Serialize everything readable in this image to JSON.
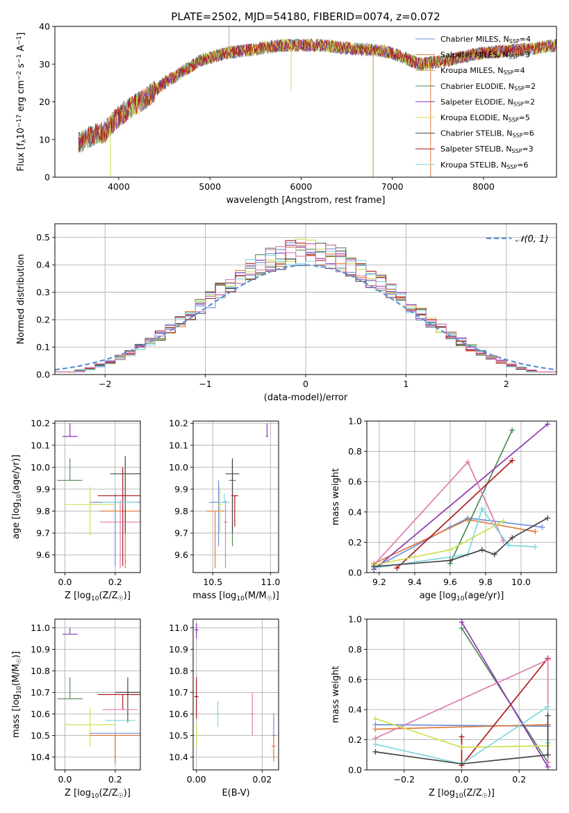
{
  "figure": {
    "title": "PLATE=2502, MJD=54180, FIBERID=0074, z=0.072"
  },
  "colors": [
    "#6f8fd9",
    "#e07b39",
    "#c8932c",
    "#4f8a57",
    "#8e35b5",
    "#cbe04d",
    "#444444",
    "#b01818",
    "#7fd6e0",
    "#e07ab0"
  ],
  "chart_data": [
    {
      "id": "spectrum",
      "type": "line",
      "xlabel": "wavelength [Angstrom, rest frame]",
      "ylabel": "Flux [f_λ10^-17 erg cm^-2 s^-1 A^-1]",
      "xlim": [
        3300,
        8800
      ],
      "ylim": [
        0,
        40
      ],
      "xticks": [
        4000,
        5000,
        6000,
        7000,
        8000
      ],
      "yticks": [
        0,
        10,
        20,
        30,
        40
      ],
      "grid": false,
      "legend": "top-right",
      "continuum": [
        [
          3560,
          9
        ],
        [
          3700,
          11
        ],
        [
          3850,
          12
        ],
        [
          3950,
          15
        ],
        [
          4100,
          18
        ],
        [
          4300,
          21
        ],
        [
          4500,
          25
        ],
        [
          4700,
          28
        ],
        [
          4900,
          31
        ],
        [
          5200,
          33
        ],
        [
          5500,
          34
        ],
        [
          5800,
          35
        ],
        [
          6200,
          35
        ],
        [
          6600,
          34
        ],
        [
          6900,
          33.5
        ],
        [
          7100,
          32
        ],
        [
          7300,
          30
        ],
        [
          7600,
          31
        ],
        [
          8000,
          33
        ],
        [
          8500,
          34
        ],
        [
          8800,
          35
        ]
      ],
      "spikes": [
        [
          5210,
          40
        ],
        [
          6790,
          0
        ],
        [
          7420,
          0
        ],
        [
          3910,
          0
        ],
        [
          5890,
          23
        ]
      ],
      "series": [
        {
          "name": "Chabrier MILES, N_SSP=4",
          "color": "#6f8fd9"
        },
        {
          "name": "Salpeter MILES, N_SSP=3",
          "color": "#e07b39"
        },
        {
          "name": "Kroupa MILES, N_SSP=4",
          "color": "#c8932c"
        },
        {
          "name": "Chabrier ELODIE, N_SSP=2",
          "color": "#4f8a57"
        },
        {
          "name": "Salpeter ELODIE, N_SSP=2",
          "color": "#8e35b5"
        },
        {
          "name": "Kroupa ELODIE, N_SSP=5",
          "color": "#cbe04d"
        },
        {
          "name": "Chabrier STELIB, N_SSP=6",
          "color": "#444444"
        },
        {
          "name": "Salpeter STELIB, N_SSP=3",
          "color": "#b01818"
        },
        {
          "name": "Kroupa STELIB, N_SSP=6",
          "color": "#7fd6e0"
        }
      ]
    },
    {
      "id": "residuals",
      "type": "line",
      "xlabel": "(data-model)/error",
      "ylabel": "Normed distribution",
      "xlim": [
        -2.5,
        2.5
      ],
      "ylim": [
        0,
        0.55
      ],
      "xticks": [
        -2,
        -1,
        0,
        1,
        2
      ],
      "yticks": [
        0.0,
        0.1,
        0.2,
        0.3,
        0.4,
        0.5
      ],
      "grid": true,
      "legend": "top-right",
      "legend_label": "N(0,1)",
      "bin_width": 0.1
    },
    {
      "id": "z-age",
      "type": "scatter",
      "xlabel": "Z [log10(Z/Z☉)]",
      "ylabel": "age [log10(age/yr)]",
      "xlim": [
        -0.04,
        0.3
      ],
      "ylim": [
        9.52,
        10.21
      ],
      "xticks": [
        0.0,
        0.2
      ],
      "yticks": [
        9.6,
        9.7,
        9.8,
        9.9,
        10.0,
        10.1,
        10.2
      ],
      "grid": true,
      "points": [
        {
          "x": 0.02,
          "y": 10.14,
          "xerr": 0.03,
          "yerr": [
            0.0,
            0.06
          ],
          "color": "#8e35b5"
        },
        {
          "x": 0.02,
          "y": 9.94,
          "xerr": 0.05,
          "yerr": [
            0.0,
            0.1
          ],
          "color": "#4f8a57"
        },
        {
          "x": 0.1,
          "y": 9.83,
          "xerr": 0.1,
          "yerr": [
            0.14,
            0.08
          ],
          "color": "#cbe04d"
        },
        {
          "x": 0.2,
          "y": 9.84,
          "xerr": 0.1,
          "yerr": [
            0.29,
            0.04
          ],
          "color": "#6f8fd9"
        },
        {
          "x": 0.24,
          "y": 9.8,
          "xerr": 0.1,
          "yerr": [
            0.26,
            0.0
          ],
          "color": "#e07b39"
        },
        {
          "x": 0.23,
          "y": 9.87,
          "xerr": 0.1,
          "yerr": [
            0.32,
            0.13
          ],
          "color": "#b01818"
        },
        {
          "x": 0.24,
          "y": 9.97,
          "xerr": 0.06,
          "yerr": [
            0.27,
            0.08
          ],
          "color": "#444444"
        },
        {
          "x": 0.22,
          "y": 9.75,
          "xerr": 0.08,
          "yerr": [
            0.21,
            0.1
          ],
          "color": "#e07ab0"
        },
        {
          "x": 0.22,
          "y": 9.84,
          "xerr": 0.07,
          "yerr": [
            0.0,
            0.0
          ],
          "color": "#7fd6e0"
        }
      ]
    },
    {
      "id": "mass-age",
      "type": "scatter",
      "xlabel": "mass [log10(M/M☉)]",
      "ylabel": "",
      "xlim": [
        10.33,
        11.07
      ],
      "ylim": [
        9.52,
        10.21
      ],
      "xticks": [
        10.5,
        11.0
      ],
      "yticks": [
        9.6,
        9.7,
        9.8,
        9.9,
        10.0,
        10.1,
        10.2
      ],
      "grid": true,
      "points": [
        {
          "x": 10.97,
          "y": 10.14,
          "xerr": 0.01,
          "yerr": [
            0.0,
            0.06
          ],
          "color": "#8e35b5"
        },
        {
          "x": 10.67,
          "y": 9.94,
          "xerr": 0.03,
          "yerr": [
            0.3,
            0.1
          ],
          "color": "#4f8a57"
        },
        {
          "x": 10.67,
          "y": 9.97,
          "xerr": 0.06,
          "yerr": [
            0.27,
            0.07
          ],
          "color": "#444444"
        },
        {
          "x": 10.69,
          "y": 9.87,
          "xerr": 0.03,
          "yerr": [
            0.14,
            0.0
          ],
          "color": "#b01818"
        },
        {
          "x": 10.55,
          "y": 9.84,
          "xerr": 0.08,
          "yerr": [
            0.2,
            0.1
          ],
          "color": "#6f8fd9"
        },
        {
          "x": 10.52,
          "y": 9.8,
          "xerr": 0.08,
          "yerr": [
            0.26,
            0.0
          ],
          "color": "#e07b39"
        },
        {
          "x": 10.6,
          "y": 9.84,
          "xerr": 0.05,
          "yerr": [
            0.0,
            0.04
          ],
          "color": "#7fd6e0"
        },
        {
          "x": 10.61,
          "y": 9.75,
          "xerr": 0.0,
          "yerr": [
            0.21,
            0.1
          ],
          "color": "#e07ab0"
        },
        {
          "x": 10.56,
          "y": 9.83,
          "xerr": 0.0,
          "yerr": [
            0.13,
            0.08
          ],
          "color": "#cbe04d"
        }
      ]
    },
    {
      "id": "age-weight",
      "type": "line",
      "xlabel": "age [log10(age/yr)]",
      "ylabel": "mass weight",
      "xlim": [
        9.13,
        10.2
      ],
      "ylim": [
        0,
        1.0
      ],
      "xticks": [
        9.2,
        9.4,
        9.6,
        9.8,
        10.0
      ],
      "yticks": [
        0.0,
        0.2,
        0.4,
        0.6,
        0.8,
        1.0
      ],
      "grid": true,
      "series": [
        {
          "color": "#6f8fd9",
          "points": [
            [
              9.17,
              0.03
            ],
            [
              9.6,
              0.3
            ],
            [
              9.7,
              0.36
            ],
            [
              10.12,
              0.3
            ]
          ]
        },
        {
          "color": "#e07b39",
          "points": [
            [
              9.17,
              0.06
            ],
            [
              9.7,
              0.35
            ],
            [
              10.08,
              0.27
            ]
          ]
        },
        {
          "color": "#4f8a57",
          "points": [
            [
              9.6,
              0.06
            ],
            [
              9.95,
              0.94
            ]
          ]
        },
        {
          "color": "#8e35b5",
          "points": [
            [
              9.17,
              0.02
            ],
            [
              10.15,
              0.98
            ]
          ]
        },
        {
          "color": "#b01818",
          "points": [
            [
              9.3,
              0.03
            ],
            [
              9.95,
              0.74
            ]
          ]
        },
        {
          "color": "#e07ab0",
          "points": [
            [
              9.17,
              0.05
            ],
            [
              9.7,
              0.73
            ],
            [
              9.9,
              0.21
            ]
          ]
        },
        {
          "color": "#cbe04d",
          "points": [
            [
              9.17,
              0.05
            ],
            [
              9.6,
              0.15
            ],
            [
              9.9,
              0.34
            ]
          ]
        },
        {
          "color": "#7fd6e0",
          "points": [
            [
              9.17,
              0.03
            ],
            [
              9.7,
              0.12
            ],
            [
              9.78,
              0.42
            ],
            [
              9.93,
              0.18
            ],
            [
              10.08,
              0.17
            ]
          ]
        },
        {
          "color": "#444444",
          "points": [
            [
              9.17,
              0.04
            ],
            [
              9.6,
              0.08
            ],
            [
              9.78,
              0.15
            ],
            [
              9.85,
              0.12
            ],
            [
              9.95,
              0.23
            ],
            [
              10.15,
              0.36
            ]
          ]
        }
      ]
    },
    {
      "id": "z-mass",
      "type": "scatter",
      "xlabel": "Z [log10(Z/Z☉)]",
      "ylabel": "mass [log10(M/M☉)]",
      "xlim": [
        -0.04,
        0.3
      ],
      "ylim": [
        10.34,
        11.04
      ],
      "xticks": [
        0.0,
        0.2
      ],
      "yticks": [
        10.4,
        10.5,
        10.6,
        10.7,
        10.8,
        10.9,
        11.0
      ],
      "grid": true,
      "points": [
        {
          "x": 0.02,
          "y": 10.97,
          "xerr": 0.03,
          "yerr": [
            0.0,
            0.03
          ],
          "color": "#8e35b5"
        },
        {
          "x": 0.02,
          "y": 10.67,
          "xerr": 0.05,
          "yerr": [
            0.0,
            0.1
          ],
          "color": "#4f8a57"
        },
        {
          "x": 0.1,
          "y": 10.55,
          "xerr": 0.1,
          "yerr": [
            0.1,
            0.08
          ],
          "color": "#cbe04d"
        },
        {
          "x": 0.2,
          "y": 10.51,
          "xerr": 0.1,
          "yerr": [
            0.14,
            0.0
          ],
          "color": "#6f8fd9"
        },
        {
          "x": 0.2,
          "y": 10.5,
          "xerr": 0.1,
          "yerr": [
            0.12,
            0.0
          ],
          "color": "#e07b39"
        },
        {
          "x": 0.23,
          "y": 10.69,
          "xerr": 0.1,
          "yerr": [
            0.07,
            0.0
          ],
          "color": "#b01818"
        },
        {
          "x": 0.25,
          "y": 10.7,
          "xerr": 0.05,
          "yerr": [
            0.14,
            0.07
          ],
          "color": "#444444"
        },
        {
          "x": 0.22,
          "y": 10.62,
          "xerr": 0.07,
          "yerr": [
            0.0,
            0.0
          ],
          "color": "#e07ab0"
        },
        {
          "x": 0.22,
          "y": 10.57,
          "xerr": 0.06,
          "yerr": [
            0.0,
            0.0
          ],
          "color": "#7fd6e0"
        }
      ]
    },
    {
      "id": "ebv-mass",
      "type": "scatter",
      "xlabel": "E(B-V)",
      "ylabel": "",
      "xlim": [
        -0.001,
        0.025
      ],
      "ylim": [
        10.34,
        11.04
      ],
      "xticks": [
        0.0,
        0.02
      ],
      "yticks": [
        10.4,
        10.5,
        10.6,
        10.7,
        10.8,
        10.9,
        11.0
      ],
      "grid": true,
      "points": [
        {
          "x": 0.0,
          "y": 10.99,
          "xerr": 0.0,
          "yerr": [
            0.04,
            0.03
          ],
          "color": "#8e35b5"
        },
        {
          "x": 0.0,
          "y": 10.68,
          "xerr": 0.0,
          "yerr": [
            0.1,
            0.09
          ],
          "color": "#b01818"
        },
        {
          "x": 0.0,
          "y": 10.5,
          "xerr": 0.0,
          "yerr": [
            0.05,
            0.05
          ],
          "color": "#cbe04d"
        },
        {
          "x": 0.0065,
          "y": 10.6,
          "xerr": 0.0,
          "yerr": [
            0.06,
            0.06
          ],
          "color": "#7fd6e0"
        },
        {
          "x": 0.017,
          "y": 10.6,
          "xerr": 0.0,
          "yerr": [
            0.1,
            0.1
          ],
          "color": "#e07ab0"
        },
        {
          "x": 0.0235,
          "y": 10.5,
          "xerr": 0.0,
          "yerr": [
            0.12,
            0.1
          ],
          "color": "#6f8fd9"
        },
        {
          "x": 0.0235,
          "y": 10.45,
          "xerr": 0.0,
          "yerr": [
            0.06,
            0.06
          ],
          "color": "#e07b39"
        }
      ]
    },
    {
      "id": "z-weight",
      "type": "line",
      "xlabel": "Z [log10(Z/Z☉)]",
      "ylabel": "mass weight",
      "xlim": [
        -0.33,
        0.33
      ],
      "ylim": [
        0,
        1.0
      ],
      "xticks": [
        -0.2,
        0.0,
        0.2
      ],
      "yticks": [
        0.0,
        0.2,
        0.4,
        0.6,
        0.8,
        1.0
      ],
      "grid": true,
      "series": [
        {
          "color": "#6f8fd9",
          "points": [
            [
              -0.3,
              0.3
            ],
            [
              0.3,
              0.29
            ]
          ]
        },
        {
          "color": "#e07b39",
          "points": [
            [
              -0.3,
              0.27
            ],
            [
              0.3,
              0.3
            ]
          ]
        },
        {
          "color": "#4f8a57",
          "points": [
            [
              0.0,
              0.94
            ],
            [
              0.3,
              0.05
            ]
          ]
        },
        {
          "color": "#8e35b5",
          "points": [
            [
              0.0,
              0.98
            ],
            [
              0.3,
              0.02
            ]
          ]
        },
        {
          "color": "#b01818",
          "points": [
            [
              0.0,
              0.22
            ],
            [
              0.0,
              0.03
            ],
            [
              0.3,
              0.74
            ]
          ]
        },
        {
          "color": "#e07ab0",
          "points": [
            [
              -0.3,
              0.21
            ],
            [
              0.3,
              0.73
            ],
            [
              0.3,
              0.05
            ]
          ]
        },
        {
          "color": "#cbe04d",
          "points": [
            [
              -0.3,
              0.34
            ],
            [
              0.0,
              0.15
            ],
            [
              0.3,
              0.16
            ]
          ]
        },
        {
          "color": "#7fd6e0",
          "points": [
            [
              -0.3,
              0.17
            ],
            [
              0.0,
              0.04
            ],
            [
              0.3,
              0.42
            ],
            [
              0.3,
              0.18
            ]
          ]
        },
        {
          "color": "#444444",
          "points": [
            [
              -0.3,
              0.12
            ],
            [
              0.0,
              0.04
            ],
            [
              0.3,
              0.1
            ],
            [
              0.3,
              0.36
            ]
          ]
        }
      ]
    }
  ]
}
